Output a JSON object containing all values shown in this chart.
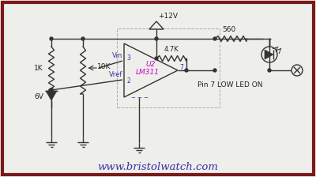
{
  "bg_color": "#eeeeea",
  "border_color": "#7a1a1a",
  "wire_color": "#333333",
  "text_blue": "#3333aa",
  "text_magenta": "#cc00cc",
  "text_dark": "#222222",
  "website": "www.bristolwatch.com",
  "note": "Pin 7 LOW LED ON",
  "lm311": "LM311",
  "u2": "U2",
  "r1k": "1K",
  "r10k": "10K",
  "r47k": "4.7K",
  "r560": "560",
  "vcc": "+12V",
  "vz": "6V",
  "vin_lbl": "Vin",
  "vref_lbl": "Vref",
  "pin3": "3",
  "pin2": "2",
  "pin7": "7"
}
